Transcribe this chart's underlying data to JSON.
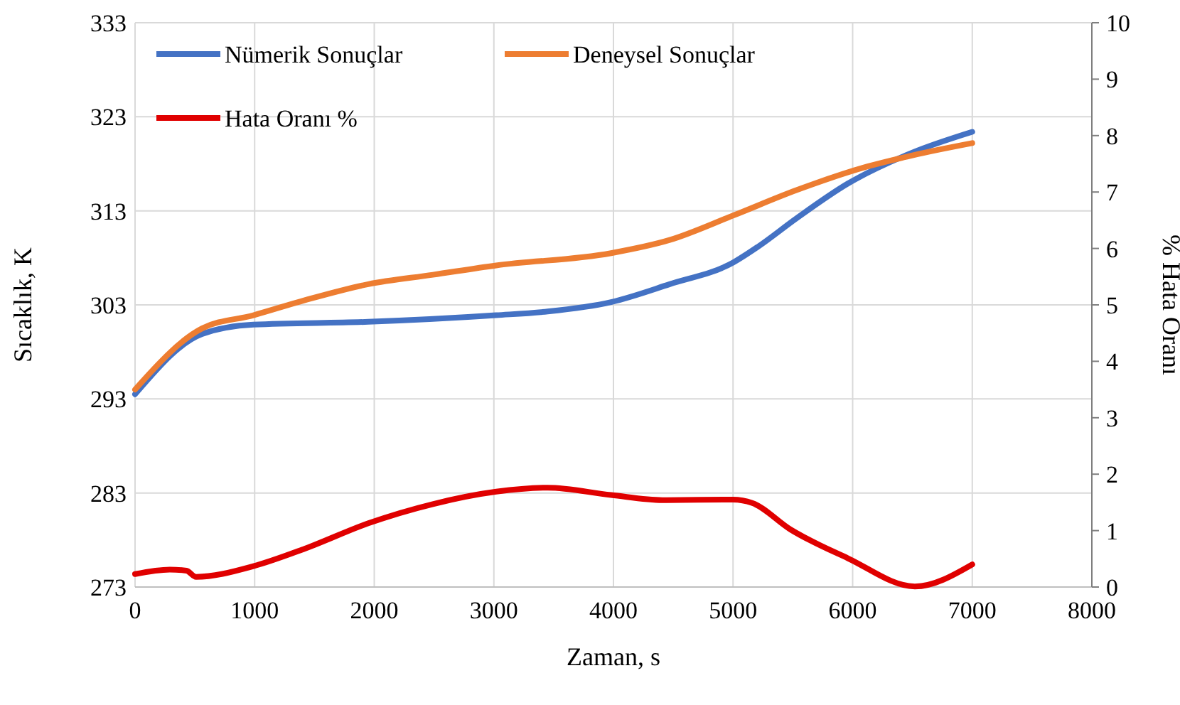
{
  "chart_data": {
    "type": "line",
    "xlabel": "Zaman, s",
    "ylabel": "Sıcaklık, K",
    "y2label": "% Hata Oranı",
    "xlim": [
      0,
      8000
    ],
    "xticks": [
      0,
      1000,
      2000,
      3000,
      4000,
      5000,
      6000,
      7000,
      8000
    ],
    "ylim": [
      273,
      333
    ],
    "yticks": [
      273,
      283,
      293,
      303,
      313,
      323,
      333
    ],
    "y2lim": [
      0,
      10
    ],
    "y2ticks": [
      0,
      1,
      2,
      3,
      4,
      5,
      6,
      7,
      8,
      9,
      10
    ],
    "grid": true,
    "legend": "top left",
    "line_style": "solid",
    "marker": "none",
    "series": [
      {
        "name": "Nümerik Sonuçlar",
        "color": "#4472c4",
        "x": [
          0,
          560,
          990,
          1950,
          3020,
          3450,
          3980,
          4470,
          5000,
          5210,
          5530,
          5960,
          6500,
          7000
        ],
        "values": [
          293.5,
          299.9,
          300.9,
          301.2,
          301.9,
          302.3,
          303.3,
          305.2,
          307.5,
          309.2,
          312.2,
          315.9,
          319.2,
          321.4
        ]
      },
      {
        "name": "Deneysel Sonuçlar",
        "color": "#ed7d31",
        "x": [
          0,
          560,
          990,
          1420,
          1950,
          2490,
          3020,
          3980,
          4470,
          5000,
          5530,
          6120,
          6500,
          7000
        ],
        "values": [
          294,
          300.5,
          301.9,
          303.5,
          305.2,
          306.2,
          307.2,
          308.5,
          309.9,
          312.5,
          315.2,
          317.7,
          318.9,
          320.2
        ]
      },
      {
        "name": "Hata Oranı %",
        "color": "#e00000",
        "axis": "y2",
        "x": [
          0,
          290,
          430,
          510,
          990,
          1420,
          1950,
          2490,
          3020,
          3450,
          3980,
          4410,
          5000,
          5160,
          5480,
          5960,
          6520,
          7000
        ],
        "values": [
          0.23,
          0.31,
          0.29,
          0.18,
          0.37,
          0.68,
          1.13,
          1.47,
          1.69,
          1.76,
          1.63,
          1.54,
          1.55,
          1.49,
          1.02,
          0.51,
          0.01,
          0.4
        ]
      }
    ]
  }
}
